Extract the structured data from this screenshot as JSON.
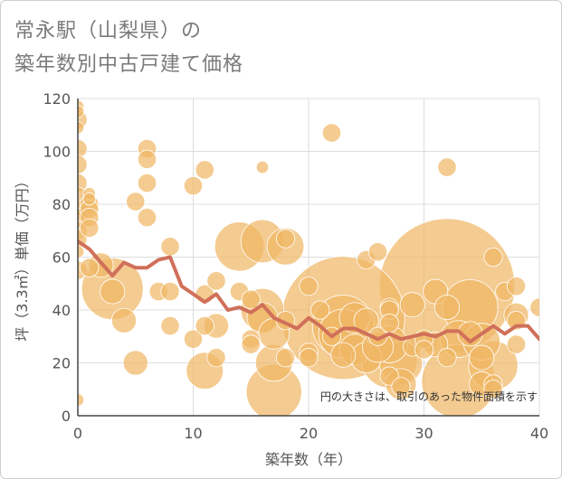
{
  "chart_data": {
    "type": "scatter",
    "title_line1": "常永駅（山梨県）の",
    "title_line2": "築年数別中古戸建て価格",
    "xlabel": "築年数（年）",
    "ylabel": "坪（3.3㎡）単価（万円）",
    "xlim": [
      0,
      40
    ],
    "ylim": [
      0,
      120
    ],
    "xticks": [
      0,
      10,
      20,
      30,
      40
    ],
    "yticks": [
      0,
      20,
      40,
      60,
      80,
      100,
      120
    ],
    "note": "円の大きさは、取引のあった物件面積を示す",
    "colors": {
      "bubble": "#f0b765",
      "line": "#d0705a",
      "grid": "#dddddd",
      "axis": "#444444"
    },
    "series": [
      {
        "name": "average",
        "type": "line",
        "x": [
          0,
          1,
          2,
          3,
          4,
          5,
          6,
          7,
          8,
          9,
          10,
          11,
          12,
          13,
          14,
          15,
          16,
          17,
          18,
          19,
          20,
          21,
          22,
          23,
          24,
          25,
          26,
          27,
          28,
          29,
          30,
          31,
          32,
          33,
          34,
          35,
          36,
          37,
          38,
          39,
          40
        ],
        "y": [
          66,
          63,
          58,
          53,
          58,
          56,
          56,
          59,
          60,
          49,
          46,
          43,
          46,
          40,
          41,
          39,
          42,
          37,
          35,
          33,
          37,
          34,
          30,
          33,
          33,
          31,
          29,
          31,
          29,
          30,
          31,
          30,
          32,
          32,
          28,
          31,
          34,
          31,
          34,
          34,
          29
        ]
      },
      {
        "name": "transactions",
        "type": "bubble",
        "points": [
          {
            "x": 0,
            "y": 117,
            "size": 2
          },
          {
            "x": 0,
            "y": 115,
            "size": 2
          },
          {
            "x": 0,
            "y": 112,
            "size": 3
          },
          {
            "x": 0,
            "y": 109,
            "size": 2
          },
          {
            "x": 0,
            "y": 101,
            "size": 3
          },
          {
            "x": 0,
            "y": 95,
            "size": 3
          },
          {
            "x": 0,
            "y": 88,
            "size": 3
          },
          {
            "x": 0,
            "y": 83,
            "size": 3
          },
          {
            "x": 0,
            "y": 78,
            "size": 3
          },
          {
            "x": 0,
            "y": 75,
            "size": 3
          },
          {
            "x": 0,
            "y": 70,
            "size": 3
          },
          {
            "x": 0,
            "y": 67,
            "size": 3
          },
          {
            "x": 0,
            "y": 62,
            "size": 2
          },
          {
            "x": 0,
            "y": 55,
            "size": 3
          },
          {
            "x": 0,
            "y": 6,
            "size": 2
          },
          {
            "x": 1,
            "y": 84,
            "size": 2
          },
          {
            "x": 1,
            "y": 82,
            "size": 2
          },
          {
            "x": 1,
            "y": 80,
            "size": 3
          },
          {
            "x": 1,
            "y": 78,
            "size": 3
          },
          {
            "x": 1,
            "y": 75,
            "size": 3
          },
          {
            "x": 1,
            "y": 71,
            "size": 3
          },
          {
            "x": 1,
            "y": 56,
            "size": 3
          },
          {
            "x": 2,
            "y": 57,
            "size": 4
          },
          {
            "x": 3,
            "y": 48,
            "size": 10
          },
          {
            "x": 3,
            "y": 47,
            "size": 4
          },
          {
            "x": 4,
            "y": 36,
            "size": 4
          },
          {
            "x": 5,
            "y": 81,
            "size": 3
          },
          {
            "x": 5,
            "y": 20,
            "size": 4
          },
          {
            "x": 6,
            "y": 101,
            "size": 3
          },
          {
            "x": 6,
            "y": 97,
            "size": 3
          },
          {
            "x": 6,
            "y": 88,
            "size": 3
          },
          {
            "x": 6,
            "y": 75,
            "size": 3
          },
          {
            "x": 7,
            "y": 47,
            "size": 3
          },
          {
            "x": 8,
            "y": 64,
            "size": 3
          },
          {
            "x": 8,
            "y": 47,
            "size": 3
          },
          {
            "x": 8,
            "y": 34,
            "size": 3
          },
          {
            "x": 10,
            "y": 87,
            "size": 3
          },
          {
            "x": 10,
            "y": 29,
            "size": 3
          },
          {
            "x": 11,
            "y": 93,
            "size": 3
          },
          {
            "x": 11,
            "y": 46,
            "size": 3
          },
          {
            "x": 11,
            "y": 34,
            "size": 3
          },
          {
            "x": 11,
            "y": 17,
            "size": 6
          },
          {
            "x": 12,
            "y": 51,
            "size": 3
          },
          {
            "x": 12,
            "y": 34,
            "size": 4
          },
          {
            "x": 12,
            "y": 22,
            "size": 3
          },
          {
            "x": 14,
            "y": 64,
            "size": 8
          },
          {
            "x": 14,
            "y": 47,
            "size": 3
          },
          {
            "x": 15,
            "y": 44,
            "size": 3
          },
          {
            "x": 15,
            "y": 29,
            "size": 3
          },
          {
            "x": 15,
            "y": 27,
            "size": 3
          },
          {
            "x": 16,
            "y": 94,
            "size": 2
          },
          {
            "x": 16,
            "y": 66,
            "size": 7
          },
          {
            "x": 16,
            "y": 40,
            "size": 7
          },
          {
            "x": 16,
            "y": 37,
            "size": 5
          },
          {
            "x": 17,
            "y": 31,
            "size": 5
          },
          {
            "x": 17,
            "y": 20,
            "size": 6
          },
          {
            "x": 17,
            "y": 9,
            "size": 9
          },
          {
            "x": 18,
            "y": 67,
            "size": 3
          },
          {
            "x": 18,
            "y": 64,
            "size": 6
          },
          {
            "x": 18,
            "y": 36,
            "size": 3
          },
          {
            "x": 18,
            "y": 22,
            "size": 3
          },
          {
            "x": 20,
            "y": 49,
            "size": 3
          },
          {
            "x": 20,
            "y": 24,
            "size": 3
          },
          {
            "x": 20,
            "y": 22,
            "size": 3
          },
          {
            "x": 21,
            "y": 40,
            "size": 3
          },
          {
            "x": 22,
            "y": 107,
            "size": 3
          },
          {
            "x": 22,
            "y": 30,
            "size": 3
          },
          {
            "x": 23,
            "y": 37,
            "size": 20
          },
          {
            "x": 23,
            "y": 34,
            "size": 10
          },
          {
            "x": 23,
            "y": 31,
            "size": 8
          },
          {
            "x": 23,
            "y": 23,
            "size": 4
          },
          {
            "x": 24,
            "y": 37,
            "size": 5
          },
          {
            "x": 24,
            "y": 25,
            "size": 5
          },
          {
            "x": 25,
            "y": 59,
            "size": 3
          },
          {
            "x": 25,
            "y": 36,
            "size": 4
          },
          {
            "x": 25,
            "y": 22,
            "size": 5
          },
          {
            "x": 26,
            "y": 62,
            "size": 3
          },
          {
            "x": 26,
            "y": 30,
            "size": 3
          },
          {
            "x": 26,
            "y": 26,
            "size": 5
          },
          {
            "x": 27,
            "y": 41,
            "size": 3
          },
          {
            "x": 27,
            "y": 40,
            "size": 3
          },
          {
            "x": 27,
            "y": 35,
            "size": 3
          },
          {
            "x": 27,
            "y": 27,
            "size": 6
          },
          {
            "x": 27,
            "y": 21,
            "size": 9
          },
          {
            "x": 27,
            "y": 15,
            "size": 3
          },
          {
            "x": 28,
            "y": 20,
            "size": 7
          },
          {
            "x": 28,
            "y": 12,
            "size": 5
          },
          {
            "x": 28,
            "y": 11,
            "size": 3
          },
          {
            "x": 29,
            "y": 42,
            "size": 4
          },
          {
            "x": 29,
            "y": 26,
            "size": 3
          },
          {
            "x": 30,
            "y": 29,
            "size": 3
          },
          {
            "x": 30,
            "y": 25,
            "size": 3
          },
          {
            "x": 31,
            "y": 47,
            "size": 4
          },
          {
            "x": 31,
            "y": 27,
            "size": 4
          },
          {
            "x": 32,
            "y": 94,
            "size": 3
          },
          {
            "x": 32,
            "y": 49,
            "size": 22
          },
          {
            "x": 32,
            "y": 41,
            "size": 4
          },
          {
            "x": 32,
            "y": 22,
            "size": 3
          },
          {
            "x": 33,
            "y": 13,
            "size": 12
          },
          {
            "x": 33,
            "y": 29,
            "size": 6
          },
          {
            "x": 34,
            "y": 41,
            "size": 9
          },
          {
            "x": 34,
            "y": 31,
            "size": 4
          },
          {
            "x": 35,
            "y": 28,
            "size": 6
          },
          {
            "x": 35,
            "y": 22,
            "size": 4
          },
          {
            "x": 35,
            "y": 12,
            "size": 4
          },
          {
            "x": 36,
            "y": 60,
            "size": 3
          },
          {
            "x": 36,
            "y": 19,
            "size": 8
          },
          {
            "x": 36,
            "y": 12,
            "size": 3
          },
          {
            "x": 36,
            "y": 10,
            "size": 3
          },
          {
            "x": 37,
            "y": 47,
            "size": 3
          },
          {
            "x": 38,
            "y": 49,
            "size": 3
          },
          {
            "x": 38,
            "y": 38,
            "size": 4
          },
          {
            "x": 38,
            "y": 36,
            "size": 3
          },
          {
            "x": 38,
            "y": 27,
            "size": 3
          },
          {
            "x": 40,
            "y": 41,
            "size": 3
          }
        ]
      }
    ]
  }
}
